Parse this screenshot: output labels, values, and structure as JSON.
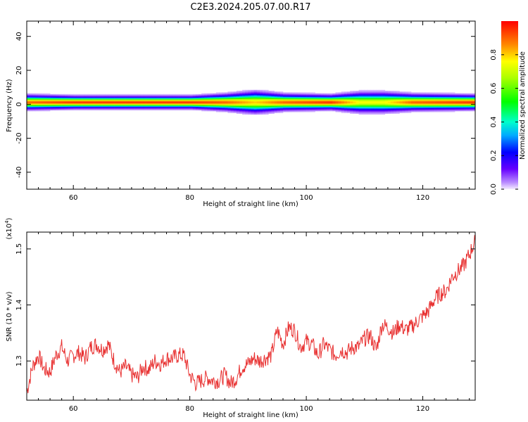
{
  "title": "C2E3.2024.205.07.00.R17",
  "chart_data": [
    {
      "type": "heatmap",
      "name": "spectrogram",
      "xlabel": "Height of straight line (km)",
      "ylabel": "Frequency (Hz)",
      "xlim": [
        52,
        129
      ],
      "ylim": [
        -50,
        49
      ],
      "xticks": [
        60,
        80,
        100,
        120
      ],
      "yticks": [
        -40,
        -20,
        0,
        20,
        40
      ],
      "xtick_labels": [
        "60",
        "80",
        "100",
        "120"
      ],
      "ytick_labels": [
        "-40",
        "-20",
        "0",
        "20",
        "40"
      ],
      "colorbar": {
        "label": "Normalized spectral amplitude",
        "range": [
          0,
          1
        ],
        "ticks": [
          0.0,
          0.2,
          0.4,
          0.6,
          0.8
        ],
        "tick_labels": [
          "0.0",
          "0.2",
          "0.4",
          "0.6",
          "0.8"
        ]
      },
      "band_center_hz": 1,
      "band_profile": [
        {
          "x": 52.5,
          "half_width_hz": 2.5,
          "peak": 0.9
        },
        {
          "x": 60,
          "half_width_hz": 2,
          "peak": 0.95
        },
        {
          "x": 70,
          "half_width_hz": 2,
          "peak": 0.95
        },
        {
          "x": 80,
          "half_width_hz": 2,
          "peak": 0.95
        },
        {
          "x": 86,
          "half_width_hz": 3,
          "peak": 0.9
        },
        {
          "x": 91,
          "half_width_hz": 4.5,
          "peak": 0.8
        },
        {
          "x": 96,
          "half_width_hz": 3,
          "peak": 0.9
        },
        {
          "x": 104,
          "half_width_hz": 2.5,
          "peak": 0.95
        },
        {
          "x": 109,
          "half_width_hz": 4,
          "peak": 0.75
        },
        {
          "x": 113,
          "half_width_hz": 4,
          "peak": 0.75
        },
        {
          "x": 118,
          "half_width_hz": 3,
          "peak": 0.9
        },
        {
          "x": 129,
          "half_width_hz": 2.5,
          "peak": 0.95
        }
      ],
      "grid": false
    },
    {
      "type": "line",
      "name": "snr",
      "xlabel": "Height of straight line (km)",
      "ylabel": "SNR (10 * v/v)",
      "y_multiplier": "(x10^4)",
      "multiplier_base": "(x10",
      "multiplier_exp": "4",
      "multiplier_close": ")",
      "xlim": [
        52,
        129
      ],
      "ylim": [
        1.23,
        1.53
      ],
      "xticks": [
        60,
        80,
        100,
        120
      ],
      "yticks": [
        1.3,
        1.4,
        1.5
      ],
      "xtick_labels": [
        "60",
        "80",
        "100",
        "120"
      ],
      "ytick_labels": [
        "1.3",
        "1.4",
        "1.5"
      ],
      "color": "#e83030",
      "x": [
        52,
        53,
        54,
        55,
        56,
        57,
        58,
        59,
        60,
        61,
        62,
        63,
        64,
        65,
        66,
        67,
        68,
        69,
        70,
        71,
        72,
        73,
        74,
        75,
        76,
        77,
        78,
        79,
        80,
        81,
        82,
        83,
        84,
        85,
        86,
        87,
        88,
        89,
        90,
        91,
        92,
        93,
        94,
        95,
        96,
        97,
        98,
        99,
        100,
        101,
        102,
        103,
        104,
        105,
        106,
        107,
        108,
        109,
        110,
        111,
        112,
        113,
        114,
        115,
        116,
        117,
        118,
        119,
        120,
        121,
        122,
        123,
        124,
        125,
        126,
        127,
        128,
        129
      ],
      "y": [
        1.245,
        1.29,
        1.31,
        1.285,
        1.28,
        1.31,
        1.325,
        1.3,
        1.31,
        1.315,
        1.305,
        1.325,
        1.33,
        1.32,
        1.33,
        1.3,
        1.28,
        1.29,
        1.275,
        1.27,
        1.29,
        1.285,
        1.3,
        1.295,
        1.305,
        1.305,
        1.31,
        1.31,
        1.275,
        1.26,
        1.265,
        1.27,
        1.265,
        1.265,
        1.275,
        1.26,
        1.27,
        1.29,
        1.295,
        1.305,
        1.3,
        1.305,
        1.31,
        1.355,
        1.33,
        1.36,
        1.355,
        1.325,
        1.335,
        1.33,
        1.31,
        1.33,
        1.32,
        1.31,
        1.32,
        1.315,
        1.325,
        1.325,
        1.34,
        1.345,
        1.32,
        1.365,
        1.36,
        1.35,
        1.365,
        1.355,
        1.36,
        1.37,
        1.38,
        1.39,
        1.41,
        1.42,
        1.425,
        1.45,
        1.46,
        1.47,
        1.49,
        1.515
      ],
      "grid": false
    }
  ]
}
